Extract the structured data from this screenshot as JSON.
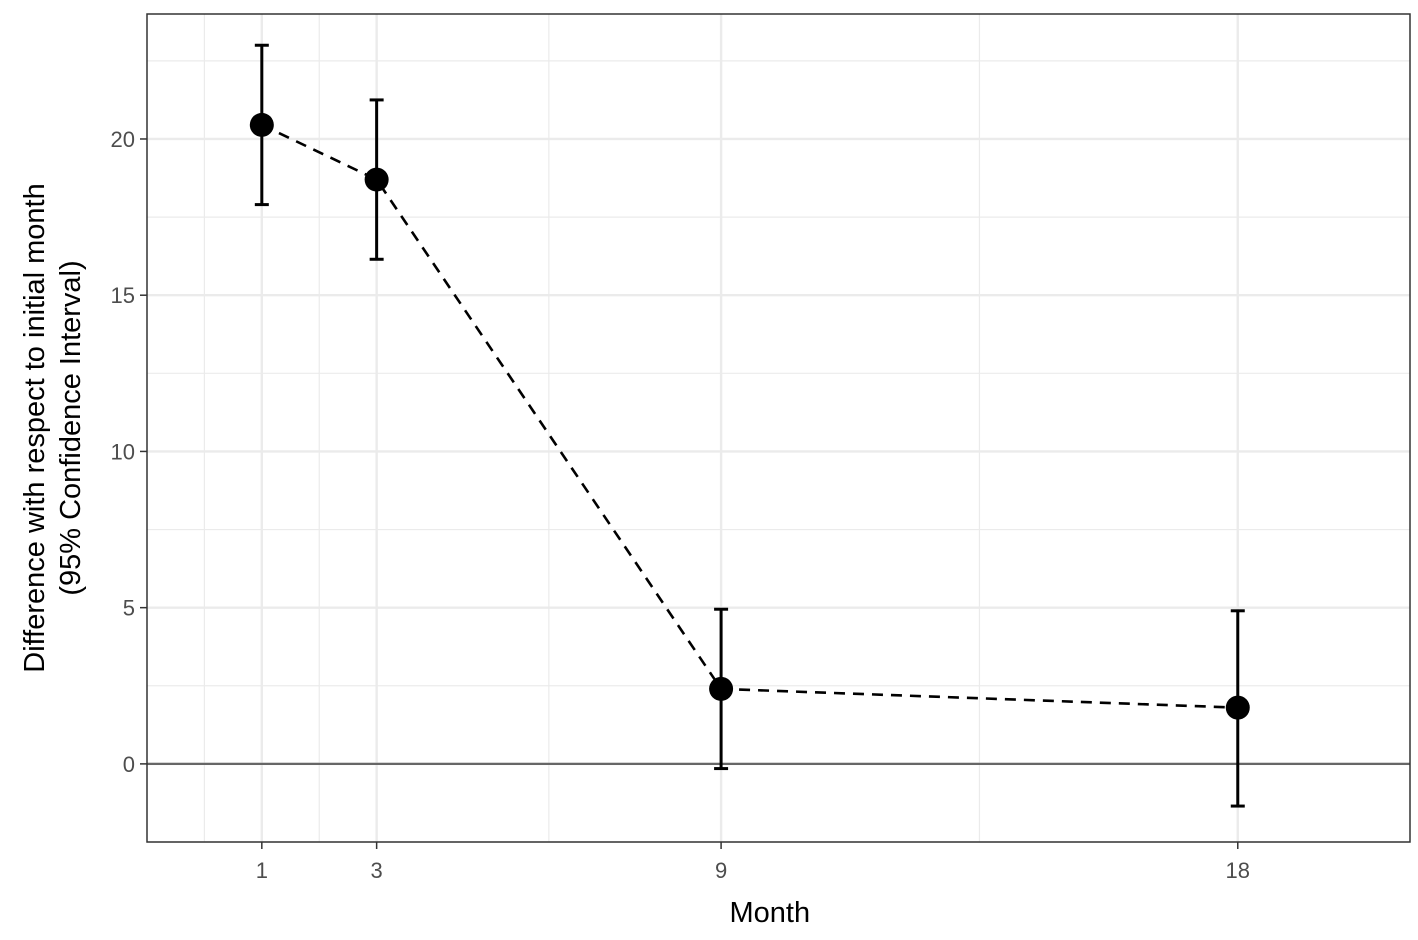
{
  "chart_data": {
    "type": "scatter",
    "title": "",
    "xlabel": "Month",
    "ylabel_line1": "Difference with respect to initial month",
    "ylabel_line2": "(95% Confidence Interval)",
    "x_ticks": [
      1,
      3,
      9,
      18
    ],
    "x_tick_labels": [
      "1",
      "3",
      "9",
      "18"
    ],
    "y_ticks": [
      0,
      5,
      10,
      15,
      20
    ],
    "y_tick_labels": [
      "0",
      "5",
      "10",
      "15",
      "20"
    ],
    "xlim": [
      -1,
      21
    ],
    "ylim": [
      -2.5,
      24
    ],
    "grid": true,
    "reference_line_y": 0,
    "connector": "dashed",
    "series": [
      {
        "points": [
          {
            "x": 1,
            "y": 20.45,
            "ci_low": 17.9,
            "ci_high": 23.0
          },
          {
            "x": 3,
            "y": 18.7,
            "ci_low": 16.15,
            "ci_high": 21.25
          },
          {
            "x": 9,
            "y": 2.4,
            "ci_low": -0.15,
            "ci_high": 4.95
          },
          {
            "x": 18,
            "y": 1.8,
            "ci_low": -1.35,
            "ci_high": 4.9
          }
        ]
      }
    ],
    "colors": {
      "points": "#000000",
      "grid": "#ebebeb",
      "panel_border": "#333333",
      "zero_line": "#666666",
      "tick_text": "#4d4d4d"
    }
  }
}
